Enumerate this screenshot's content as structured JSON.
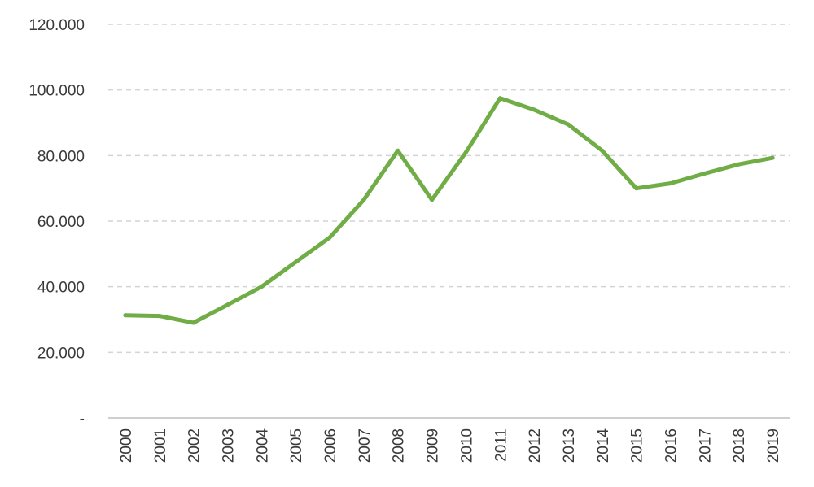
{
  "chart_data": {
    "type": "line",
    "title": "",
    "xlabel": "",
    "ylabel": "",
    "categories": [
      "2000",
      "2001",
      "2002",
      "2003",
      "2004",
      "2005",
      "2006",
      "2007",
      "2008",
      "2009",
      "2010",
      "2011",
      "2012",
      "2013",
      "2014",
      "2015",
      "2016",
      "2017",
      "2018",
      "2019"
    ],
    "series": [
      {
        "color": "#70ad47",
        "values": [
          31300,
          31100,
          29000,
          34500,
          40000,
          47500,
          55000,
          66500,
          81500,
          66500,
          81000,
          97500,
          94000,
          89500,
          81500,
          70000,
          71500,
          74500,
          77300,
          79300
        ]
      }
    ],
    "ylim": [
      0,
      120000
    ],
    "y_ticks": [
      {
        "value": 0,
        "label": "-"
      },
      {
        "value": 20000,
        "label": "20.000"
      },
      {
        "value": 40000,
        "label": "40.000"
      },
      {
        "value": 60000,
        "label": "60.000"
      },
      {
        "value": 80000,
        "label": "80.000"
      },
      {
        "value": 100000,
        "label": "100.000"
      },
      {
        "value": 120000,
        "label": "120.000"
      }
    ],
    "grid": true,
    "legend": "none"
  }
}
